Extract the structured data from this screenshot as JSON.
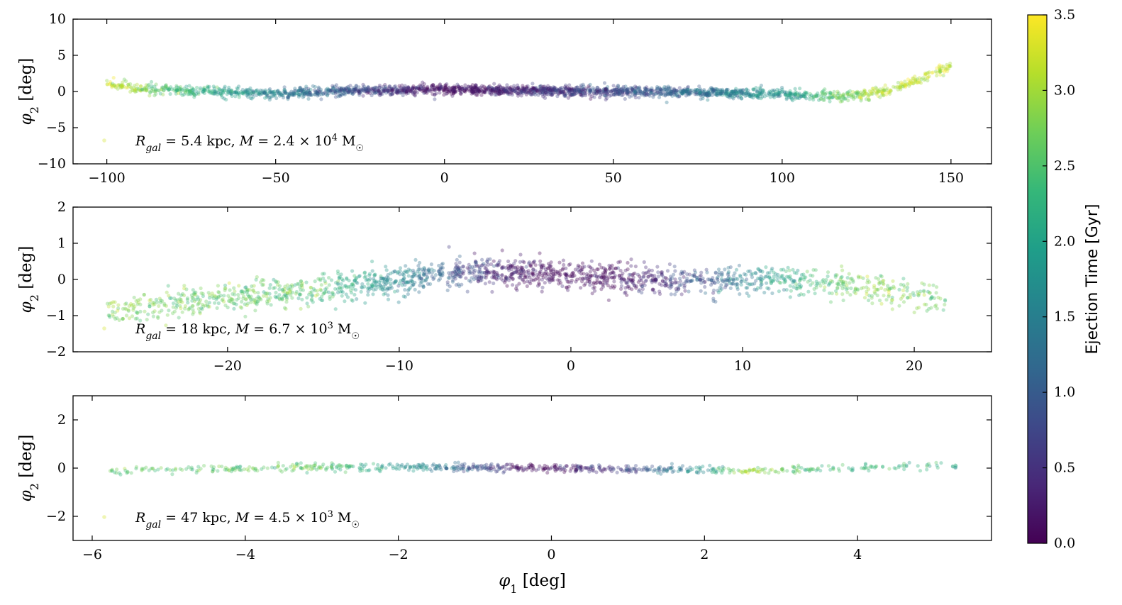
{
  "chart_data": [
    {
      "type": "scatter",
      "xlabel": "",
      "ylabel": "φ2 [deg]",
      "xlim": [
        -110,
        162
      ],
      "ylim": [
        -10,
        10
      ],
      "xticks": [
        -100,
        -50,
        0,
        50,
        100,
        150
      ],
      "yticks": [
        -10,
        -5,
        0,
        5,
        10
      ],
      "legend": "R_gal = 5.4 kpc, M = 2.4 × 10^4 M☉",
      "legend_placement": "lower-left",
      "stream_shape": {
        "x_range": [
          -100,
          150
        ],
        "centerline": [
          [
            -100,
            1.0
          ],
          [
            -90,
            0.4
          ],
          [
            -70,
            0.0
          ],
          [
            -50,
            -0.3
          ],
          [
            -30,
            0.1
          ],
          [
            0,
            0.3
          ],
          [
            30,
            0.1
          ],
          [
            60,
            0.0
          ],
          [
            100,
            -0.3
          ],
          [
            118,
            -0.8
          ],
          [
            130,
            0.0
          ],
          [
            140,
            1.5
          ],
          [
            150,
            3.5
          ]
        ],
        "spread_deg": 0.7,
        "ejection_time_gyr": [
          [
            -100,
            3.2
          ],
          [
            -80,
            2.4
          ],
          [
            -40,
            1.2
          ],
          [
            0,
            0.1
          ],
          [
            30,
            0.5
          ],
          [
            60,
            0.9
          ],
          [
            100,
            1.8
          ],
          [
            125,
            3.0
          ],
          [
            150,
            3.2
          ]
        ]
      }
    },
    {
      "type": "scatter",
      "xlabel": "",
      "ylabel": "φ2 [deg]",
      "xlim": [
        -29,
        24.5
      ],
      "ylim": [
        -2,
        2
      ],
      "xticks": [
        -20,
        -10,
        0,
        10,
        20
      ],
      "yticks": [
        -2,
        -1,
        0,
        1,
        2
      ],
      "legend": "R_gal = 18 kpc, M = 6.7 × 10^3 M☉",
      "legend_placement": "lower-left",
      "stream_shape": {
        "x_range": [
          -27,
          22
        ],
        "centerline": [
          [
            -27,
            -0.9
          ],
          [
            -22,
            -0.6
          ],
          [
            -15,
            -0.3
          ],
          [
            -10,
            0.0
          ],
          [
            -6,
            0.2
          ],
          [
            -2,
            0.18
          ],
          [
            2,
            0.05
          ],
          [
            6,
            -0.05
          ],
          [
            12,
            0.0
          ],
          [
            17,
            -0.2
          ],
          [
            22,
            -0.6
          ]
        ],
        "spread_deg": 0.4,
        "ejection_time_gyr": [
          [
            -27,
            2.8
          ],
          [
            -15,
            2.5
          ],
          [
            -8,
            1.2
          ],
          [
            -4,
            0.3
          ],
          [
            0,
            0.0
          ],
          [
            4,
            0.2
          ],
          [
            8,
            0.9
          ],
          [
            12,
            2.0
          ],
          [
            17,
            2.8
          ],
          [
            22,
            2.6
          ]
        ]
      }
    },
    {
      "type": "scatter",
      "xlabel": "φ1 [deg]",
      "ylabel": "φ2 [deg]",
      "xlim": [
        -6.25,
        5.75
      ],
      "ylim": [
        -3,
        3
      ],
      "xticks": [
        -6,
        -4,
        -2,
        0,
        2,
        4
      ],
      "yticks": [
        -2,
        0,
        2
      ],
      "legend": "R_gal = 47 kpc, M = 4.5 × 10^3 M☉",
      "legend_placement": "lower-left",
      "stream_shape": {
        "x_range": [
          -5.8,
          5.3
        ],
        "centerline": [
          [
            -5.8,
            -0.1
          ],
          [
            -3,
            0.05
          ],
          [
            0,
            0.0
          ],
          [
            2.5,
            -0.1
          ],
          [
            5.3,
            0.1
          ]
        ],
        "spread_deg": 0.15,
        "ejection_time_gyr": [
          [
            -5.8,
            2.5
          ],
          [
            -3,
            2.6
          ],
          [
            -1.5,
            1.5
          ],
          [
            -0.5,
            0.3
          ],
          [
            0,
            0.1
          ],
          [
            1,
            0.7
          ],
          [
            2,
            1.8
          ],
          [
            2.5,
            3.0
          ],
          [
            3.5,
            2.4
          ],
          [
            5.3,
            2.2
          ]
        ]
      }
    }
  ],
  "colorbar": {
    "label": "Ejection Time [Gyr]",
    "range": [
      0.0,
      3.5
    ],
    "ticks": [
      "0.0",
      "0.5",
      "1.0",
      "1.5",
      "2.0",
      "2.5",
      "3.0",
      "3.5"
    ],
    "colormap": "viridis",
    "stops": [
      "#440154",
      "#482878",
      "#3e4989",
      "#31688e",
      "#26828e",
      "#1f9e89",
      "#35b779",
      "#6ece58",
      "#b5de2b",
      "#fde725"
    ]
  }
}
